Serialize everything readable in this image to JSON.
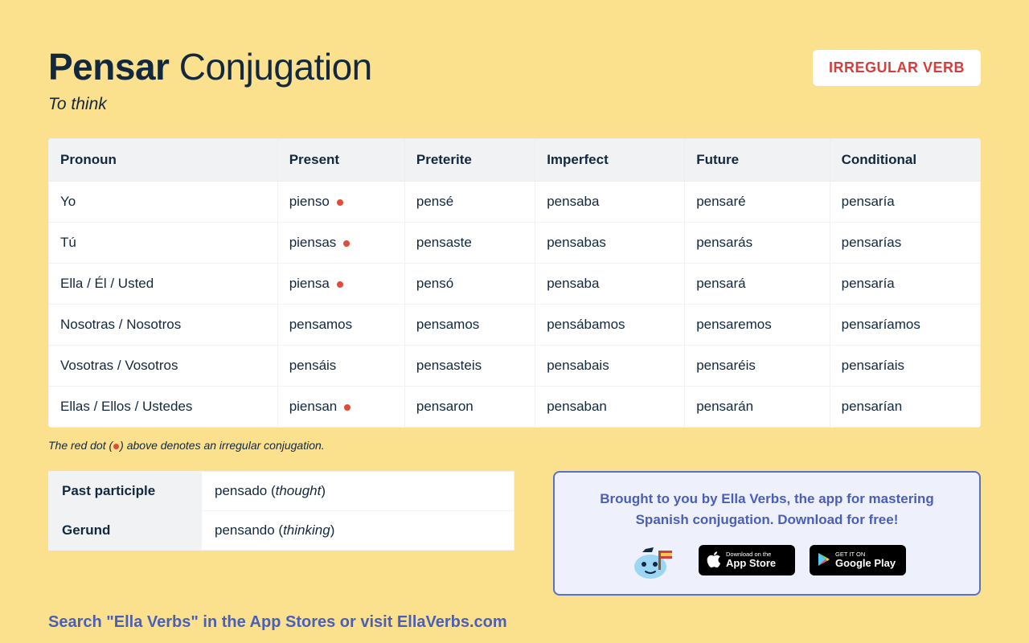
{
  "header": {
    "verb": "Pensar",
    "suffix": "Conjugation",
    "translation": "To think",
    "badge": "IRREGULAR VERB"
  },
  "table": {
    "columns": [
      "Pronoun",
      "Present",
      "Preterite",
      "Imperfect",
      "Future",
      "Conditional"
    ],
    "rows": [
      {
        "pronoun": "Yo",
        "cells": [
          {
            "text": "pienso",
            "irregular": true
          },
          {
            "text": "pensé"
          },
          {
            "text": "pensaba"
          },
          {
            "text": "pensaré"
          },
          {
            "text": "pensaría"
          }
        ]
      },
      {
        "pronoun": "Tú",
        "cells": [
          {
            "text": "piensas",
            "irregular": true
          },
          {
            "text": "pensaste"
          },
          {
            "text": "pensabas"
          },
          {
            "text": "pensarás"
          },
          {
            "text": "pensarías"
          }
        ]
      },
      {
        "pronoun": "Ella / Él / Usted",
        "cells": [
          {
            "text": "piensa",
            "irregular": true
          },
          {
            "text": "pensó"
          },
          {
            "text": "pensaba"
          },
          {
            "text": "pensará"
          },
          {
            "text": "pensaría"
          }
        ]
      },
      {
        "pronoun": "Nosotras / Nosotros",
        "cells": [
          {
            "text": "pensamos"
          },
          {
            "text": "pensamos"
          },
          {
            "text": "pensábamos"
          },
          {
            "text": "pensaremos"
          },
          {
            "text": "pensaríamos"
          }
        ]
      },
      {
        "pronoun": "Vosotras / Vosotros",
        "cells": [
          {
            "text": "pensáis"
          },
          {
            "text": "pensasteis"
          },
          {
            "text": "pensabais"
          },
          {
            "text": "pensaréis"
          },
          {
            "text": "pensaríais"
          }
        ]
      },
      {
        "pronoun": "Ellas / Ellos / Ustedes",
        "cells": [
          {
            "text": "piensan",
            "irregular": true
          },
          {
            "text": "pensaron"
          },
          {
            "text": "pensaban"
          },
          {
            "text": "pensarán"
          },
          {
            "text": "pensarían"
          }
        ]
      }
    ]
  },
  "footnote": {
    "pre": "The red dot (",
    "post": ") above denotes an irregular conjugation."
  },
  "forms": {
    "past_label": "Past participle",
    "past_value": "pensado (",
    "past_italic": "thought",
    "past_close": ")",
    "gerund_label": "Gerund",
    "gerund_value": "pensando (",
    "gerund_italic": "thinking",
    "gerund_close": ")"
  },
  "promo": {
    "line1": "Brought to you by Ella Verbs, the app for mastering",
    "line2": "Spanish conjugation. Download for free!",
    "appstore_small": "Download on the",
    "appstore_big": "App Store",
    "play_small": "GET IT ON",
    "play_big": "Google Play"
  },
  "search_line": "Search \"Ella Verbs\" in the App Stores or visit EllaVerbs.com",
  "colors": {
    "background": "#fbe08d",
    "text": "#12283e",
    "badge_text": "#d63d3d",
    "dot": "#e24a3a",
    "promo_border": "#5b6fc7",
    "promo_bg": "#eef0fb",
    "promo_text": "#4a5fb8"
  }
}
